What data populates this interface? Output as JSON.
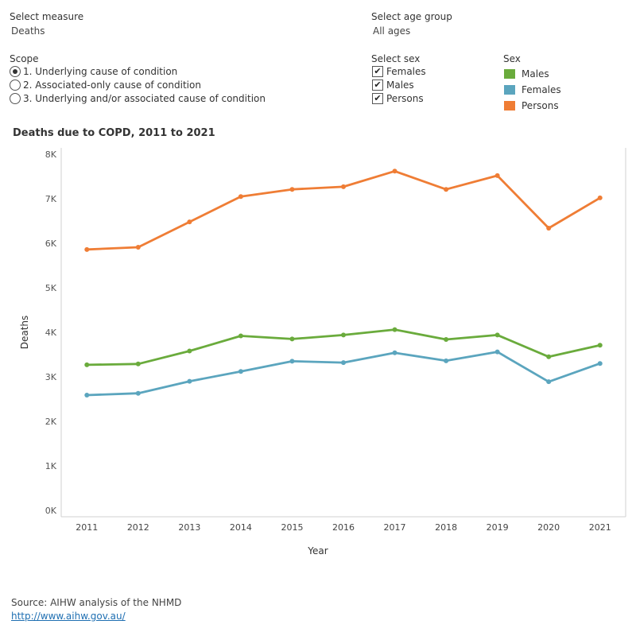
{
  "controls": {
    "measure": {
      "label": "Select measure",
      "value": "Deaths"
    },
    "age_group": {
      "label": "Select age group",
      "value": "All ages"
    },
    "scope": {
      "label": "Scope",
      "options": [
        "1. Underlying cause of condition",
        "2. Associated-only cause of condition",
        "3. Underlying and/or associated cause of condition"
      ],
      "selected_index": 0
    },
    "sex": {
      "label": "Select sex",
      "options": [
        "Females",
        "Males",
        "Persons"
      ],
      "checked": [
        true,
        true,
        true
      ]
    }
  },
  "legend": {
    "title": "Sex",
    "items": [
      {
        "label": "Males",
        "color": "#6aab3c"
      },
      {
        "label": "Females",
        "color": "#5ba5be"
      },
      {
        "label": "Persons",
        "color": "#ef7d35"
      }
    ]
  },
  "chart_data": {
    "type": "line",
    "title": "Deaths due to COPD, 2011 to 2021",
    "xlabel": "Year",
    "ylabel": "Deaths",
    "categories": [
      "2011",
      "2012",
      "2013",
      "2014",
      "2015",
      "2016",
      "2017",
      "2018",
      "2019",
      "2020",
      "2021"
    ],
    "ylim": [
      0,
      8000
    ],
    "yticks": [
      0,
      1000,
      2000,
      3000,
      4000,
      5000,
      6000,
      7000,
      8000
    ],
    "ytick_labels": [
      "0K",
      "1K",
      "2K",
      "3K",
      "4K",
      "5K",
      "6K",
      "7K",
      "8K"
    ],
    "series": [
      {
        "name": "Males",
        "color": "#6aab3c",
        "values": [
          3270,
          3290,
          3580,
          3920,
          3850,
          3940,
          4060,
          3840,
          3940,
          3450,
          3710
        ]
      },
      {
        "name": "Females",
        "color": "#5ba5be",
        "values": [
          2590,
          2630,
          2900,
          3120,
          3350,
          3320,
          3540,
          3360,
          3560,
          2890,
          3300
        ]
      },
      {
        "name": "Persons",
        "color": "#ef7d35",
        "values": [
          5860,
          5910,
          6480,
          7050,
          7210,
          7270,
          7620,
          7210,
          7520,
          6340,
          7020
        ]
      }
    ]
  },
  "source": {
    "text": "Source: AIHW analysis of the NHMD",
    "link": "http://www.aihw.gov.au/"
  }
}
